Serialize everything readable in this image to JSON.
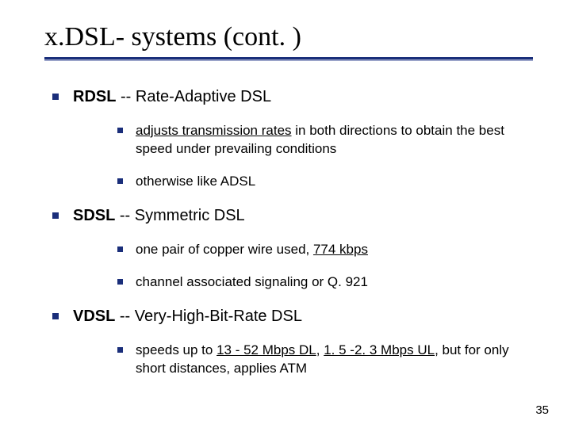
{
  "title": "x.DSL- systems (cont. )",
  "items": [
    {
      "level": 1,
      "segments": [
        {
          "text": "RDSL",
          "bold": true
        },
        {
          "text": " -- Rate-Adaptive DSL"
        }
      ]
    },
    {
      "level": 2,
      "segments": [
        {
          "text": "adjusts transmission rates",
          "underline": true
        },
        {
          "text": " in both directions to obtain the best speed under prevailing conditions"
        }
      ]
    },
    {
      "level": 2,
      "segments": [
        {
          "text": "otherwise like ADSL"
        }
      ]
    },
    {
      "level": 1,
      "segments": [
        {
          "text": "SDSL",
          "bold": true
        },
        {
          "text": " -- Symmetric DSL"
        }
      ]
    },
    {
      "level": 2,
      "segments": [
        {
          "text": "one pair of copper wire used, "
        },
        {
          "text": "774 kbps",
          "underline": true
        }
      ]
    },
    {
      "level": 2,
      "segments": [
        {
          "text": "channel associated signaling or Q. 921"
        }
      ]
    },
    {
      "level": 1,
      "segments": [
        {
          "text": "VDSL",
          "bold": true
        },
        {
          "text": " -- Very-High-Bit-Rate DSL"
        }
      ]
    },
    {
      "level": 2,
      "segments": [
        {
          "text": "speeds up to "
        },
        {
          "text": "13 - 52 Mbps DL",
          "underline": true
        },
        {
          "text": ", "
        },
        {
          "text": "1. 5 -2. 3 Mbps UL",
          "underline": true
        },
        {
          "text": ", but for only short distances, applies ATM"
        }
      ]
    }
  ],
  "page_number": "35",
  "colors": {
    "accent": "#1a2e7a",
    "rule_shadow": "#9aa3c9",
    "text": "#000000",
    "background": "#ffffff"
  }
}
